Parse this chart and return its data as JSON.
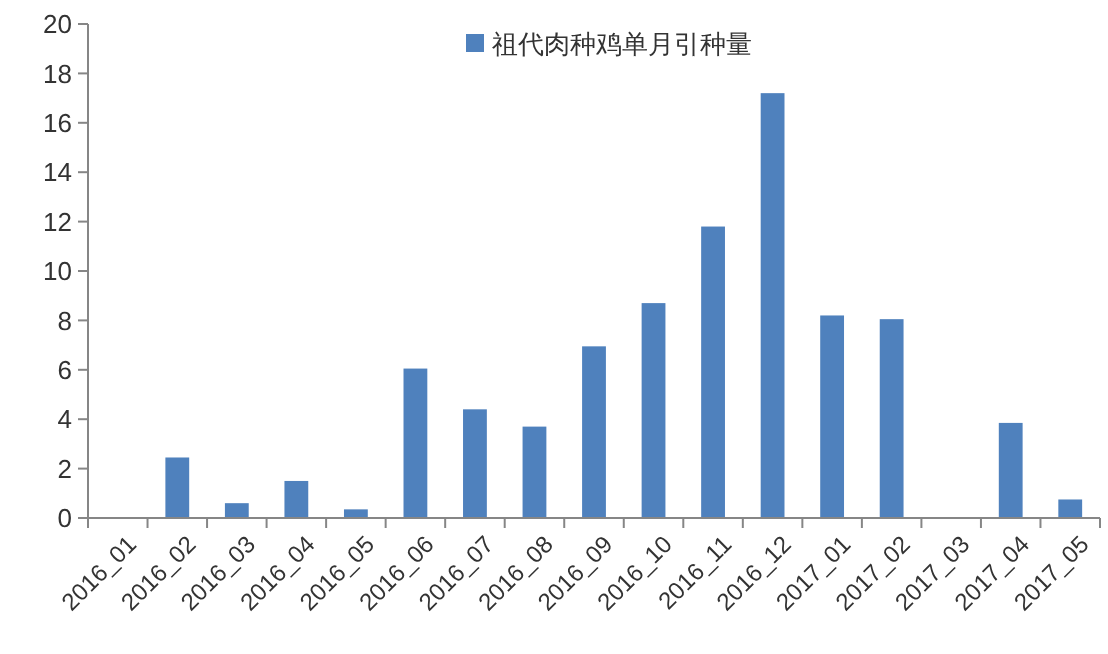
{
  "chart_data": {
    "type": "bar",
    "categories": [
      "2016_01",
      "2016_02",
      "2016_03",
      "2016_04",
      "2016_05",
      "2016_06",
      "2016_07",
      "2016_08",
      "2016_09",
      "2016_10",
      "2016_11",
      "2016_12",
      "2017_01",
      "2017_02",
      "2017_03",
      "2017_04",
      "2017_05"
    ],
    "series": [
      {
        "name": "祖代肉种鸡单月引种量",
        "color": "#4f81bd",
        "values": [
          0,
          2.45,
          0.6,
          1.5,
          0.35,
          6.05,
          4.4,
          3.7,
          6.95,
          8.7,
          11.8,
          17.2,
          8.2,
          8.05,
          0,
          3.85,
          0.75
        ]
      }
    ],
    "ylim": [
      0,
      20
    ],
    "yticks": [
      0,
      2,
      4,
      6,
      8,
      10,
      12,
      14,
      16,
      18,
      20
    ],
    "grid": false,
    "legend": "top"
  }
}
